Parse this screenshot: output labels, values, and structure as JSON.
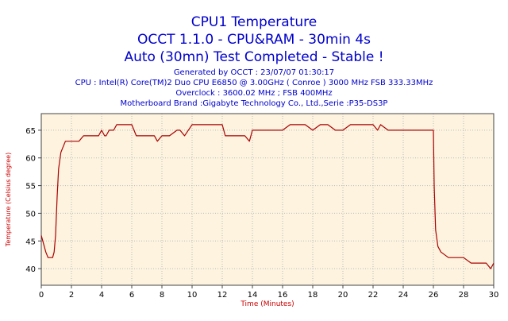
{
  "header": {
    "title_line1": "CPU1 Temperature",
    "title_line2": "OCCT 1.1.0 - CPU&RAM - 30min 4s",
    "title_line3": "Auto (30mn) Test Completed - Stable !"
  },
  "info": {
    "generated": "Generated by OCCT : 23/07/07 01:30:17",
    "cpu": "CPU : Intel(R) Core(TM)2 Duo CPU     E6850  @ 3.00GHz ( Conroe ) 3000 MHz FSB 333.33MHz",
    "overclock": "Overclock : 3600.02 MHz ; FSB 400MHz",
    "motherboard": "Motherboard Brand :Gigabyte Technology Co., Ltd.,Serie :P35-DS3P"
  },
  "colors": {
    "title": "#0000cc",
    "axis_label": "#cc0000",
    "series": "#aa0000",
    "plot_background": "#fdf3df",
    "grid": "#bbbbbb"
  },
  "chart_data": {
    "type": "line",
    "xlabel": "Time (Minutes)",
    "ylabel": "Temperature (Celsius degree)",
    "xlim": [
      0,
      30
    ],
    "ylim": [
      37,
      68
    ],
    "xticks": [
      0,
      2,
      4,
      6,
      8,
      10,
      12,
      14,
      16,
      18,
      20,
      22,
      24,
      26,
      28,
      30
    ],
    "yticks": [
      40,
      45,
      50,
      55,
      60,
      65
    ],
    "grid": true,
    "legend": "none",
    "series": [
      {
        "x": [
          0.0,
          0.1,
          0.2,
          0.3,
          0.45,
          0.6,
          0.75,
          0.85,
          0.95,
          1.05,
          1.15,
          1.3,
          1.45,
          1.6,
          1.8,
          2.0,
          2.2,
          2.5,
          2.8,
          3.0,
          3.2,
          3.5,
          3.8,
          4.0,
          4.2,
          4.3,
          4.5,
          4.6,
          4.8,
          5.0,
          5.5,
          6.0,
          6.3,
          6.5,
          7.0,
          7.5,
          7.7,
          8.0,
          8.5,
          9.0,
          9.2,
          9.5,
          10.0,
          10.5,
          11.0,
          11.5,
          12.0,
          12.2,
          12.5,
          13.0,
          13.5,
          13.8,
          14.0,
          14.5,
          15.0,
          15.5,
          16.0,
          16.5,
          17.0,
          17.5,
          18.0,
          18.5,
          19.0,
          19.5,
          20.0,
          20.5,
          21.0,
          21.5,
          22.0,
          22.3,
          22.5,
          23.0,
          23.5,
          24.0,
          24.5,
          25.0,
          25.5,
          25.8,
          26.0,
          26.05,
          26.15,
          26.3,
          26.5,
          27.0,
          27.5,
          28.0,
          28.5,
          29.0,
          29.5,
          29.8,
          30.0
        ],
        "y": [
          46,
          45,
          44,
          43,
          42,
          42,
          42,
          43,
          46,
          53,
          58,
          61,
          62,
          63,
          63,
          63,
          63,
          63,
          64,
          64,
          64,
          64,
          64,
          65,
          64,
          64,
          65,
          65,
          65,
          66,
          66,
          66,
          64,
          64,
          64,
          64,
          63,
          64,
          64,
          65,
          65,
          64,
          66,
          66,
          66,
          66,
          66,
          64,
          64,
          64,
          64,
          63,
          65,
          65,
          65,
          65,
          65,
          66,
          66,
          66,
          65,
          66,
          66,
          65,
          65,
          66,
          66,
          66,
          66,
          65,
          66,
          65,
          65,
          65,
          65,
          65,
          65,
          65,
          65,
          55,
          47,
          44,
          43,
          42,
          42,
          42,
          41,
          41,
          41,
          40,
          41
        ]
      }
    ]
  }
}
